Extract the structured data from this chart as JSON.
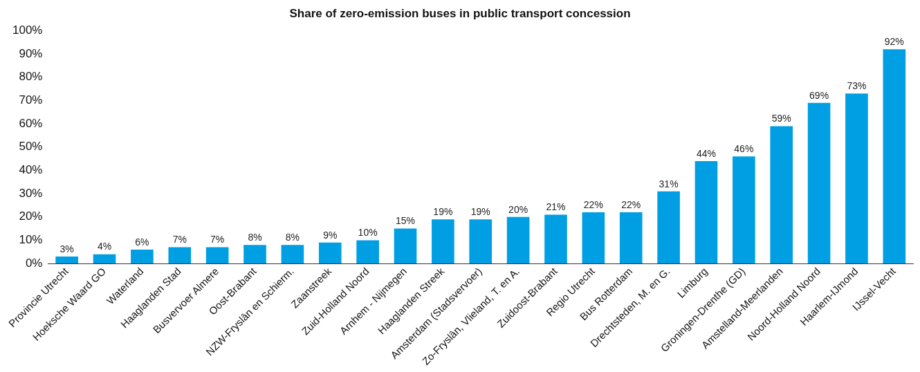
{
  "chart_data": {
    "type": "bar",
    "title": "Share of zero-emission buses in public transport concession",
    "categories": [
      "Provincie Utrecht",
      "Hoeksche Waard GO",
      "Waterland",
      "Haaglanden Stad",
      "Busvervoer Almere",
      "Oost-Brabant",
      "NZW-Fryslân en Schierm.",
      "Zaanstreek",
      "Zuid-Holland Noord",
      "Arnhem - Nijmegen",
      "Haaglanden Streek",
      "Amsterdam (Stadsvervoer)",
      "Zo-Fryslân, Vlieland, T. en A.",
      "Zuidoost-Brabant",
      "Regio Utrecht",
      "Bus Rotterdam",
      "Drechtsteden, M. en G.",
      "Limburg",
      "Groningen-Drenthe (GD)",
      "Amstelland-Meerlanden",
      "Noord-Holland Noord",
      "Haarlem-IJmond",
      "IJssel-Vecht"
    ],
    "values": [
      3,
      4,
      6,
      7,
      7,
      8,
      8,
      9,
      10,
      15,
      19,
      19,
      20,
      21,
      22,
      22,
      31,
      44,
      46,
      59,
      69,
      73,
      92
    ],
    "value_labels": [
      "3%",
      "4%",
      "6%",
      "7%",
      "7%",
      "8%",
      "8%",
      "9%",
      "10%",
      "15%",
      "19%",
      "19%",
      "20%",
      "21%",
      "22%",
      "22%",
      "31%",
      "44%",
      "46%",
      "59%",
      "69%",
      "73%",
      "92%"
    ],
    "color": "#009fe3",
    "ylim": [
      0,
      100
    ],
    "yticks": [
      {
        "value": 0,
        "label": "0%"
      },
      {
        "value": 10,
        "label": "10%"
      },
      {
        "value": 20,
        "label": "20%"
      },
      {
        "value": 30,
        "label": "30%"
      },
      {
        "value": 40,
        "label": "40%"
      },
      {
        "value": 50,
        "label": "50%"
      },
      {
        "value": 60,
        "label": "60%"
      },
      {
        "value": 70,
        "label": "70%"
      },
      {
        "value": 80,
        "label": "80%"
      },
      {
        "value": 90,
        "label": "90%"
      },
      {
        "value": 100,
        "label": "100%"
      }
    ],
    "grid": false,
    "legend": false
  }
}
